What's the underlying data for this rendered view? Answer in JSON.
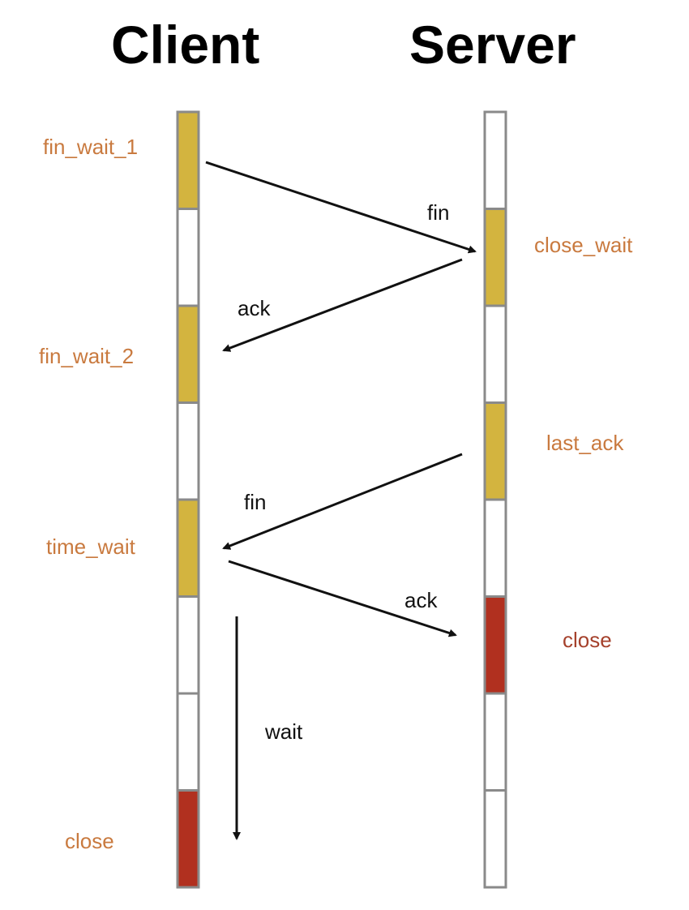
{
  "headers": {
    "client": "Client",
    "server": "Server"
  },
  "colors": {
    "state_label": "#c97a3f",
    "close_label": "#a5412c",
    "segment_active": "#d3b43f",
    "segment_closed": "#b1301f",
    "segment_empty": "#ffffff",
    "segment_border": "#8a8a8a",
    "arrow": "#111111"
  },
  "client": {
    "segments": [
      "active",
      "empty",
      "active",
      "empty",
      "active",
      "empty",
      "empty",
      "closed"
    ],
    "states": {
      "fin_wait_1": "fin_wait_1",
      "fin_wait_2": "fin_wait_2",
      "time_wait": "time_wait",
      "close": "close"
    }
  },
  "server": {
    "segments": [
      "empty",
      "active",
      "empty",
      "active",
      "empty",
      "closed",
      "empty",
      "empty"
    ],
    "states": {
      "close_wait": "close_wait",
      "last_ack": "last_ack",
      "close": "close"
    }
  },
  "messages": [
    {
      "id": "fin-1",
      "label": "fin",
      "from": "client",
      "to": "server"
    },
    {
      "id": "ack-1",
      "label": "ack",
      "from": "server",
      "to": "client"
    },
    {
      "id": "fin-2",
      "label": "fin",
      "from": "server",
      "to": "client"
    },
    {
      "id": "ack-2",
      "label": "ack",
      "from": "client",
      "to": "server"
    }
  ],
  "wait": {
    "label": "wait"
  }
}
